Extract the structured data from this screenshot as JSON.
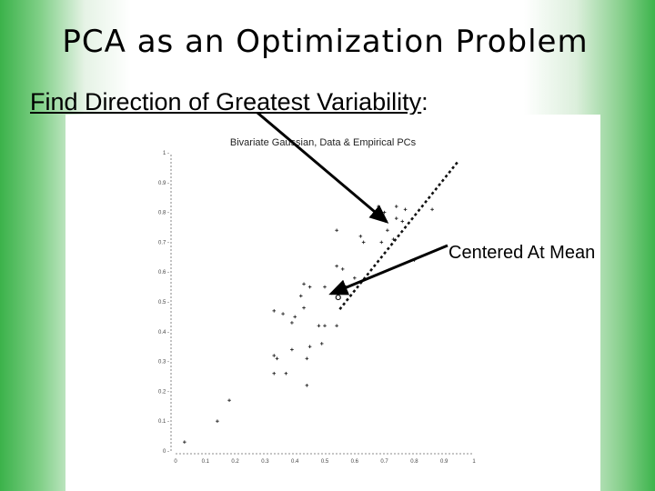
{
  "slide": {
    "title": "PCA as an Optimization Problem",
    "subtitle_underlined": "Find Direction of Greatest Variability",
    "subtitle_suffix": ":",
    "callout_mean": "Centered At Mean",
    "colors": {
      "gradient_green": "#3bb24a",
      "text": "#000000"
    }
  },
  "chart_data": {
    "type": "scatter",
    "title": "Bivariate Gaussian, Data & Empirical PCs",
    "xlim": [
      0,
      1
    ],
    "ylim": [
      0,
      1
    ],
    "x_ticks": [
      "0",
      "0.1",
      "0.2",
      "0.3",
      "0.4",
      "0.5",
      "0.6",
      "0.7",
      "0.8",
      "0.9",
      "1"
    ],
    "y_ticks": [
      "0",
      "0.1",
      "0.2",
      "0.3",
      "0.4",
      "0.5",
      "0.6",
      "0.7",
      "0.8",
      "0.9",
      "1"
    ],
    "points": [
      [
        0.03,
        0.03
      ],
      [
        0.14,
        0.1
      ],
      [
        0.18,
        0.17
      ],
      [
        0.44,
        0.22
      ],
      [
        0.33,
        0.26
      ],
      [
        0.37,
        0.26
      ],
      [
        0.34,
        0.31
      ],
      [
        0.44,
        0.31
      ],
      [
        0.39,
        0.34
      ],
      [
        0.33,
        0.32
      ],
      [
        0.45,
        0.35
      ],
      [
        0.49,
        0.36
      ],
      [
        0.5,
        0.42
      ],
      [
        0.48,
        0.42
      ],
      [
        0.54,
        0.42
      ],
      [
        0.39,
        0.43
      ],
      [
        0.4,
        0.45
      ],
      [
        0.36,
        0.46
      ],
      [
        0.33,
        0.47
      ],
      [
        0.43,
        0.48
      ],
      [
        0.42,
        0.52
      ],
      [
        0.43,
        0.56
      ],
      [
        0.45,
        0.55
      ],
      [
        0.5,
        0.55
      ],
      [
        0.56,
        0.53
      ],
      [
        0.57,
        0.55
      ],
      [
        0.6,
        0.58
      ],
      [
        0.54,
        0.62
      ],
      [
        0.56,
        0.61
      ],
      [
        0.54,
        0.74
      ],
      [
        0.62,
        0.72
      ],
      [
        0.63,
        0.7
      ],
      [
        0.69,
        0.7
      ],
      [
        0.71,
        0.74
      ],
      [
        0.73,
        0.71
      ],
      [
        0.74,
        0.78
      ],
      [
        0.76,
        0.77
      ],
      [
        0.77,
        0.81
      ],
      [
        0.7,
        0.8
      ],
      [
        0.74,
        0.82
      ],
      [
        0.68,
        0.82
      ],
      [
        0.86,
        0.81
      ],
      [
        0.8,
        0.64
      ]
    ],
    "mean": [
      0.545,
      0.515
    ],
    "pc_line": {
      "from": [
        0.55,
        0.475
      ],
      "to": [
        0.95,
        0.975
      ]
    }
  }
}
